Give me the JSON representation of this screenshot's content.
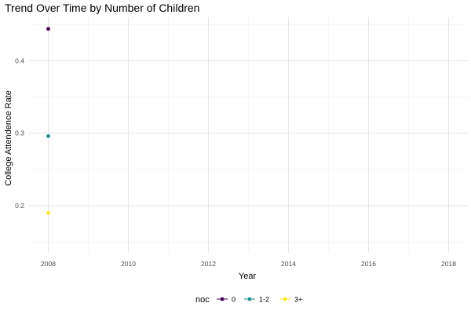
{
  "chart_data": {
    "type": "line",
    "title": "Trend Over Time by Number of Children",
    "xlabel": "Year",
    "ylabel": "College Attendence Rate",
    "xlim": [
      2007.5,
      2018.5
    ],
    "ylim": [
      0.135,
      0.46
    ],
    "x_ticks": [
      2008,
      2010,
      2012,
      2014,
      2016,
      2018
    ],
    "x_tick_labels": [
      "2008",
      "2010",
      "2012",
      "2014",
      "2016",
      "2018"
    ],
    "x_minor_ticks": [
      2009,
      2011,
      2013,
      2015,
      2017
    ],
    "y_ticks": [
      0.2,
      0.3,
      0.4
    ],
    "y_tick_labels": [
      "0.2",
      "0.3",
      "0.4"
    ],
    "y_minor_ticks": [
      0.15,
      0.25,
      0.35,
      0.45
    ],
    "grid": true,
    "legend": {
      "title": "noc",
      "position": "bottom"
    },
    "series": [
      {
        "name": "0",
        "color": "#440154",
        "x": [
          2008
        ],
        "y": [
          0.444
        ]
      },
      {
        "name": "1-2",
        "color": "#21908c",
        "x": [
          2008
        ],
        "y": [
          0.296
        ]
      },
      {
        "name": "3+",
        "color": "#fde725",
        "x": [
          2008
        ],
        "y": [
          0.19
        ]
      }
    ]
  }
}
